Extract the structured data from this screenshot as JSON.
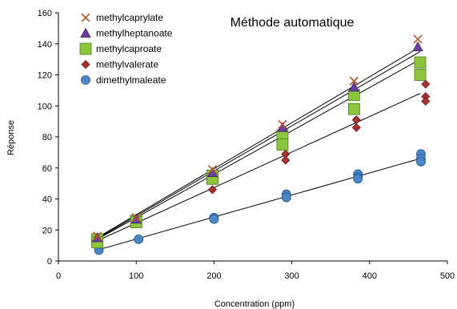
{
  "chart_data": {
    "type": "scatter",
    "title": "Méthode automatique",
    "xlabel": "Concentration (ppm)",
    "ylabel": "Réponse",
    "xlim": [
      0,
      500
    ],
    "ylim": [
      0,
      160
    ],
    "xticks": [
      0,
      100,
      200,
      300,
      400,
      500
    ],
    "yticks": [
      0,
      20,
      40,
      60,
      80,
      100,
      120,
      140,
      160
    ],
    "grid": false,
    "legend_position": "top-left",
    "trendlines": true,
    "series": [
      {
        "name": "methylcaprylate",
        "marker": "x",
        "color": "#b5532f",
        "points": [
          [
            50,
            16
          ],
          [
            100,
            28
          ],
          [
            198,
            59
          ],
          [
            288,
            88
          ],
          [
            380,
            116
          ],
          [
            462,
            143
          ]
        ],
        "fit": [
          [
            50,
            15
          ],
          [
            465,
            138
          ]
        ]
      },
      {
        "name": "methylheptanoate",
        "marker": "triangle",
        "color": "#6a3fa0",
        "points": [
          [
            50,
            15
          ],
          [
            100,
            27
          ],
          [
            198,
            57
          ],
          [
            288,
            86
          ],
          [
            380,
            112
          ],
          [
            462,
            138
          ]
        ],
        "fit": [
          [
            50,
            14.5
          ],
          [
            465,
            135
          ]
        ]
      },
      {
        "name": "methylcaproate",
        "marker": "square",
        "color": "#8cc63f",
        "points": [
          [
            50,
            14
          ],
          [
            50,
            12
          ],
          [
            100,
            26
          ],
          [
            100,
            25
          ],
          [
            198,
            55
          ],
          [
            198,
            53
          ],
          [
            288,
            81
          ],
          [
            288,
            75
          ],
          [
            380,
            107
          ],
          [
            380,
            98
          ],
          [
            465,
            128
          ],
          [
            465,
            120
          ]
        ],
        "fit": [
          [
            50,
            14
          ],
          [
            465,
            130
          ]
        ]
      },
      {
        "name": "methylvalerate",
        "marker": "diamond",
        "color": "#a83232",
        "points": [
          [
            52,
            13
          ],
          [
            100,
            24
          ],
          [
            198,
            46
          ],
          [
            292,
            69
          ],
          [
            292,
            65
          ],
          [
            383,
            91
          ],
          [
            383,
            86
          ],
          [
            472,
            114
          ],
          [
            472,
            106
          ],
          [
            472,
            103
          ]
        ],
        "fit": [
          [
            50,
            13
          ],
          [
            465,
            108
          ]
        ]
      },
      {
        "name": "dimethylmaleate",
        "marker": "circle",
        "color": "#4a86c8",
        "points": [
          [
            52,
            7
          ],
          [
            103,
            14
          ],
          [
            200,
            28
          ],
          [
            200,
            27
          ],
          [
            293,
            43
          ],
          [
            293,
            41
          ],
          [
            385,
            56
          ],
          [
            385,
            54
          ],
          [
            385,
            53
          ],
          [
            466,
            69
          ],
          [
            466,
            66
          ],
          [
            466,
            64
          ]
        ],
        "fit": [
          [
            50,
            7
          ],
          [
            465,
            66
          ]
        ]
      }
    ]
  }
}
